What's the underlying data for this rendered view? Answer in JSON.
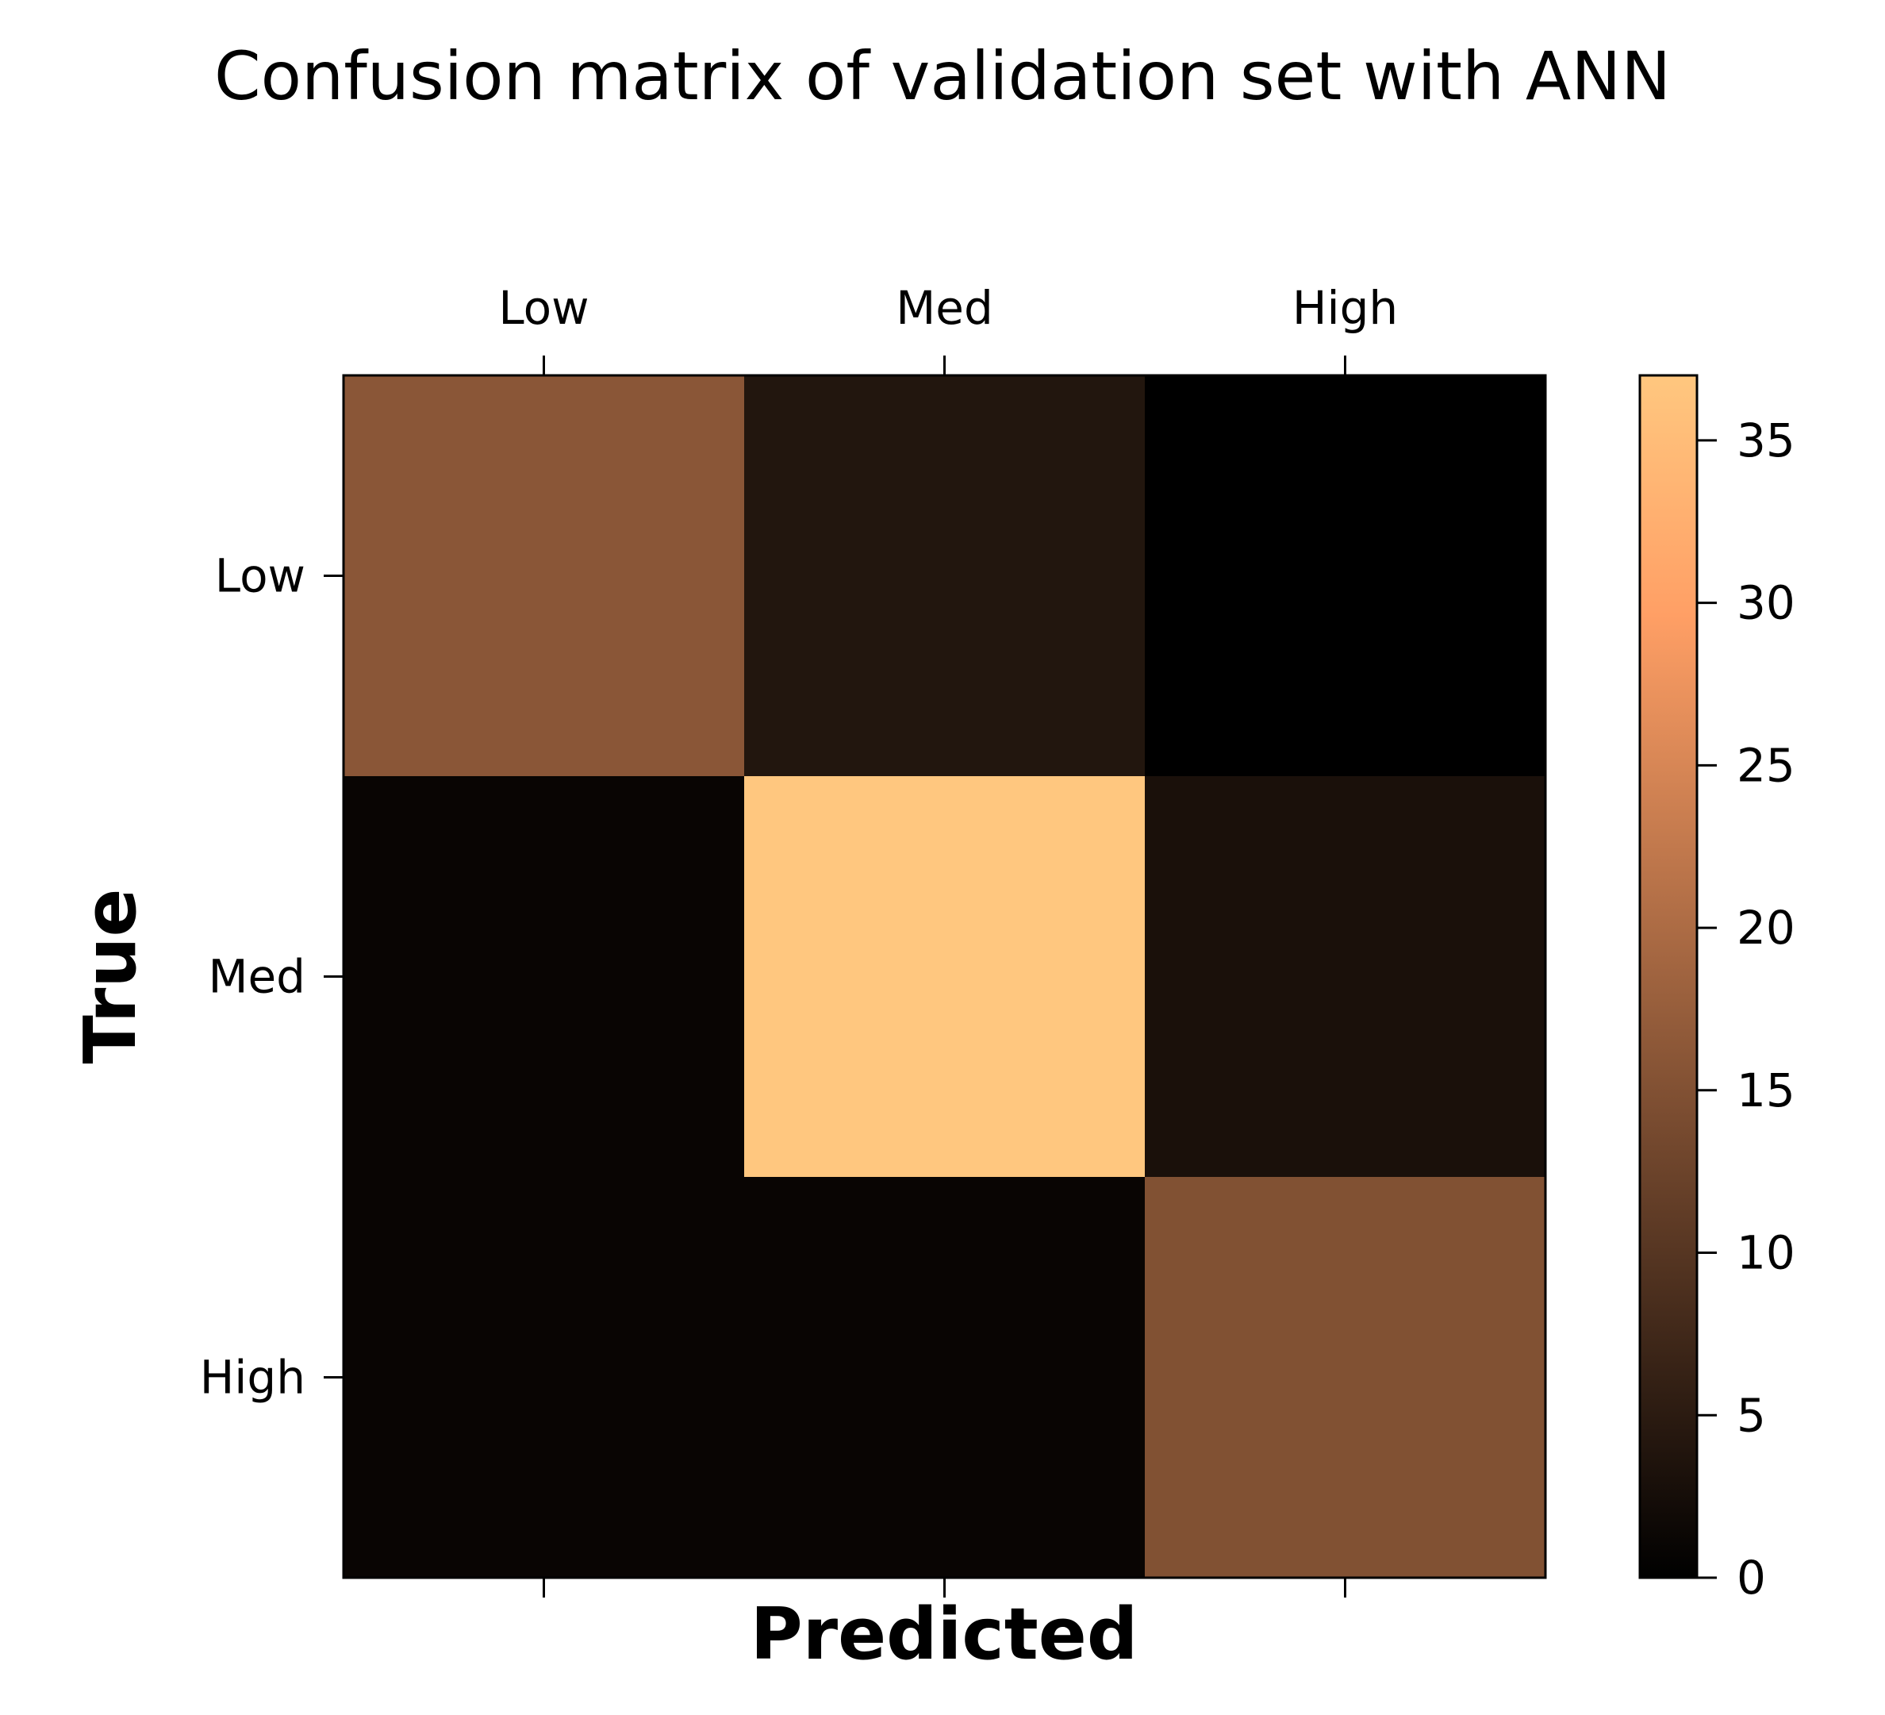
{
  "chart_data": {
    "type": "heatmap",
    "title": "Confusion matrix of validation set with ANN",
    "xlabel": "Predicted",
    "ylabel": "True",
    "x_categories": [
      "Low",
      "Med",
      "High"
    ],
    "y_categories": [
      "Low",
      "Med",
      "High"
    ],
    "values": [
      [
        16,
        4,
        0
      ],
      [
        1,
        37,
        3
      ],
      [
        1,
        1,
        15
      ]
    ],
    "colormap": "copper",
    "colorbar": {
      "range": [
        0,
        37
      ],
      "ticks": [
        0,
        5,
        10,
        15,
        20,
        25,
        30,
        35
      ],
      "colors": [
        "#000000",
        "#ffc77f"
      ]
    },
    "x_ticks_position": "top"
  }
}
